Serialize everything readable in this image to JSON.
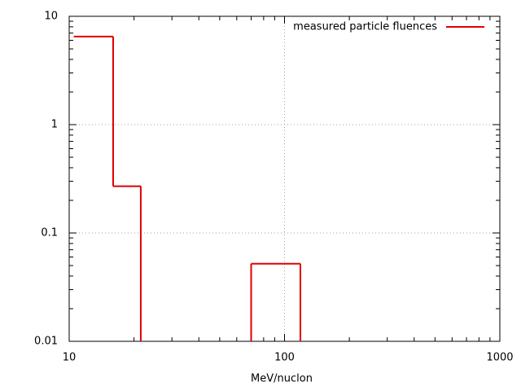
{
  "chart_data": {
    "type": "histogram",
    "xlabel": "MeV/nuclon",
    "bins": [
      10.5,
      16,
      21.5,
      70,
      118.5
    ],
    "series": [
      {
        "name": "measured particle fluences",
        "color": "#e00000",
        "counts": [
          6.5,
          0.27,
          null,
          0.052
        ]
      }
    ],
    "xlim": [
      10,
      1000
    ],
    "ylim": [
      0.01,
      10
    ],
    "xticks": [
      10,
      100,
      1000
    ],
    "yticks": [
      0.01,
      0.1,
      1,
      10
    ],
    "xscale": "log",
    "yscale": "log",
    "grid": true,
    "legend": "upper right"
  }
}
